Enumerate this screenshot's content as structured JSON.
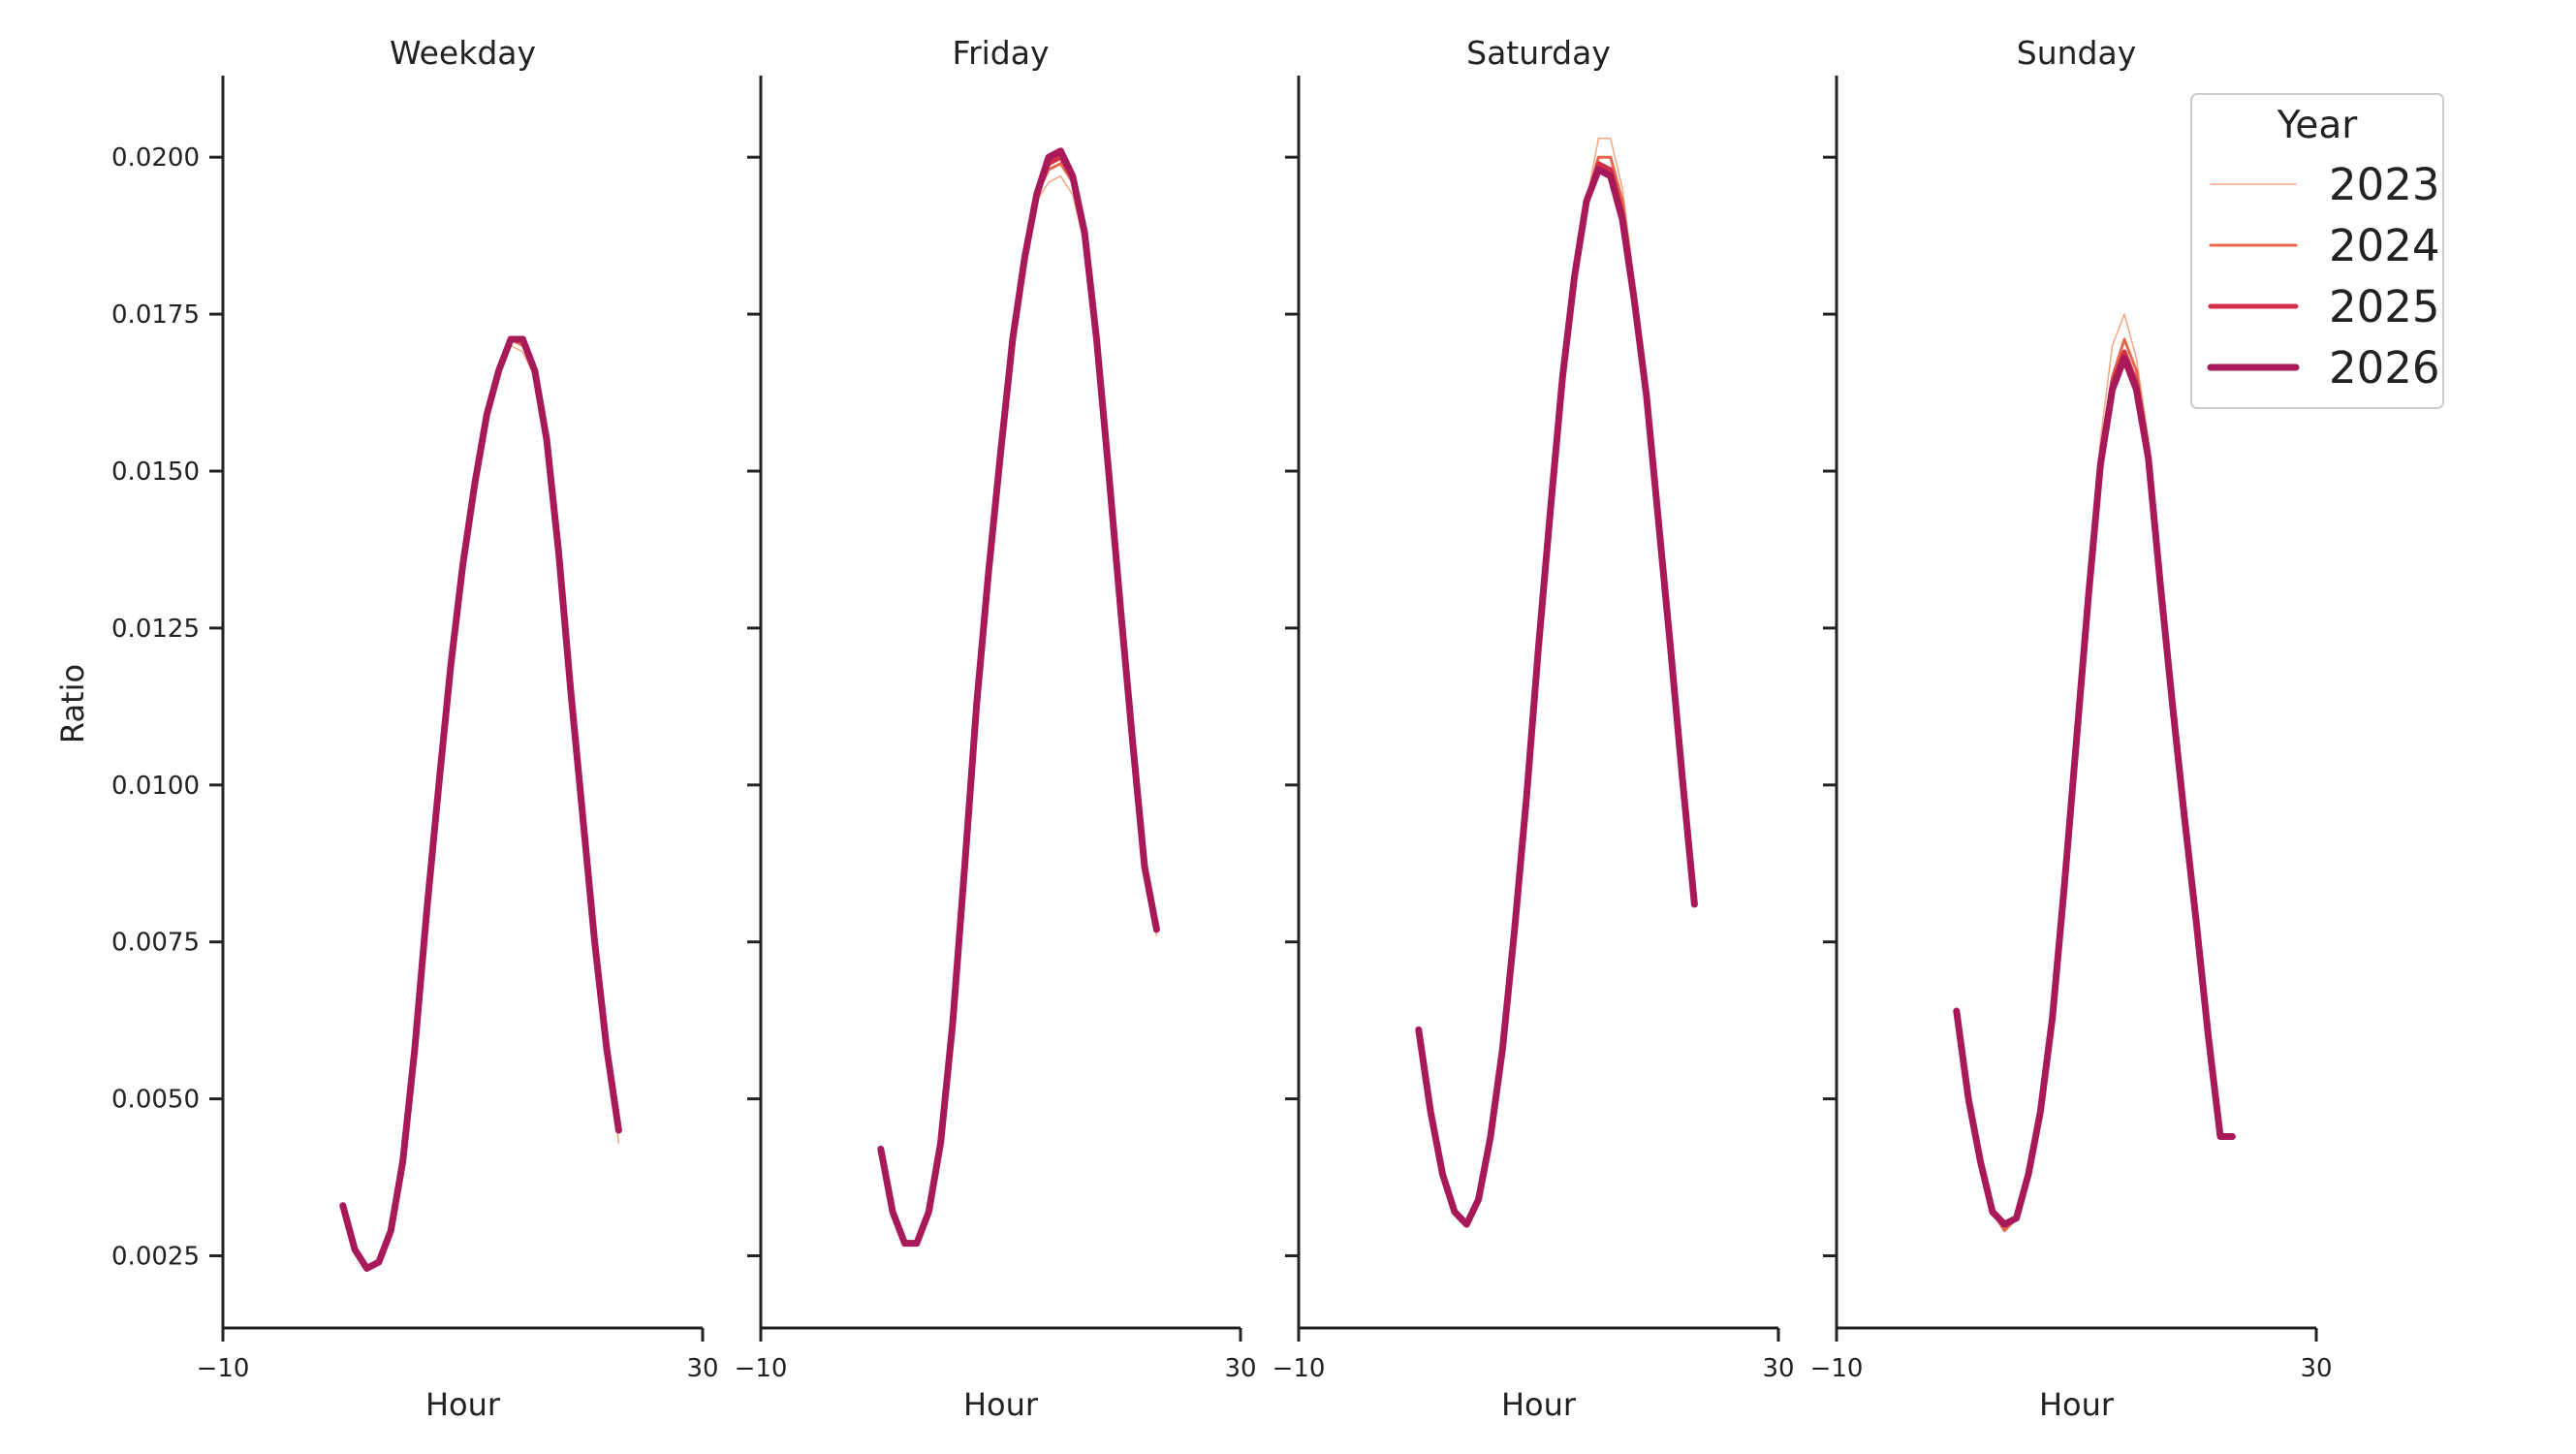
{
  "chart_data": {
    "type": "line",
    "ylabel": "Ratio",
    "xlabel": "Hour",
    "xlim": [
      -10,
      30
    ],
    "x_ticks": [
      -10,
      30
    ],
    "x_tick_labels": [
      "−10",
      "30"
    ],
    "ylim": [
      0.00135,
      0.0213
    ],
    "y_ticks": [
      0.0025,
      0.005,
      0.0075,
      0.01,
      0.0125,
      0.015,
      0.0175,
      0.02
    ],
    "y_tick_labels": [
      "0.0025",
      "0.0050",
      "0.0075",
      "0.0100",
      "0.0125",
      "0.0150",
      "0.0175",
      "0.0200"
    ],
    "grid": false,
    "legend": {
      "title": "Year",
      "position": "top-right",
      "entries": [
        {
          "name": "2023",
          "color": "#f4a582",
          "width": 1.5
        },
        {
          "name": "2024",
          "color": "#e8674a",
          "width": 3
        },
        {
          "name": "2025",
          "color": "#d0304a",
          "width": 5
        },
        {
          "name": "2026",
          "color": "#a8195a",
          "width": 7
        }
      ]
    },
    "x": [
      0,
      1,
      2,
      3,
      4,
      5,
      6,
      7,
      8,
      9,
      10,
      11,
      12,
      13,
      14,
      15,
      16,
      17,
      18,
      19,
      20,
      21,
      22,
      23
    ],
    "panels": [
      {
        "title": "Weekday",
        "series": [
          {
            "name": "2023",
            "values": [
              0.0033,
              0.0026,
              0.0023,
              0.0024,
              0.0029,
              0.004,
              0.0058,
              0.008,
              0.01,
              0.0119,
              0.0135,
              0.0148,
              0.0159,
              0.0166,
              0.017,
              0.0169,
              0.0165,
              0.0154,
              0.0136,
              0.0115,
              0.0095,
              0.0075,
              0.0058,
              0.0043
            ]
          },
          {
            "name": "2024",
            "values": [
              0.0033,
              0.0026,
              0.0023,
              0.0024,
              0.0029,
              0.004,
              0.0058,
              0.008,
              0.01,
              0.0119,
              0.0135,
              0.0148,
              0.0159,
              0.0166,
              0.0171,
              0.017,
              0.0166,
              0.0155,
              0.0137,
              0.0115,
              0.0095,
              0.0075,
              0.0058,
              0.0045
            ]
          },
          {
            "name": "2025",
            "values": [
              0.0033,
              0.0026,
              0.0023,
              0.0024,
              0.0029,
              0.004,
              0.0058,
              0.008,
              0.01,
              0.0119,
              0.0135,
              0.0148,
              0.0159,
              0.0166,
              0.0171,
              0.0171,
              0.0166,
              0.0155,
              0.0137,
              0.0115,
              0.0095,
              0.0075,
              0.0058,
              0.0045
            ]
          },
          {
            "name": "2026",
            "values": [
              0.0033,
              0.0026,
              0.0023,
              0.0024,
              0.0029,
              0.004,
              0.0058,
              0.008,
              0.01,
              0.0119,
              0.0135,
              0.0148,
              0.0159,
              0.0166,
              0.0171,
              0.0171,
              0.0166,
              0.0155,
              0.0137,
              0.0115,
              0.0095,
              0.0075,
              0.0058,
              0.0045
            ]
          }
        ]
      },
      {
        "title": "Friday",
        "series": [
          {
            "name": "2023",
            "values": [
              0.0042,
              0.0032,
              0.0027,
              0.0027,
              0.0032,
              0.0043,
              0.0062,
              0.0087,
              0.0113,
              0.0134,
              0.0153,
              0.017,
              0.0184,
              0.0193,
              0.0196,
              0.0197,
              0.0194,
              0.0186,
              0.017,
              0.0149,
              0.0127,
              0.0106,
              0.0086,
              0.0076
            ]
          },
          {
            "name": "2024",
            "values": [
              0.0042,
              0.0032,
              0.0027,
              0.0027,
              0.0032,
              0.0043,
              0.0062,
              0.0087,
              0.0113,
              0.0134,
              0.0153,
              0.0171,
              0.0184,
              0.0194,
              0.0198,
              0.0199,
              0.0196,
              0.0187,
              0.0171,
              0.015,
              0.0128,
              0.0107,
              0.0087,
              0.0077
            ]
          },
          {
            "name": "2025",
            "values": [
              0.0042,
              0.0032,
              0.0027,
              0.0027,
              0.0032,
              0.0043,
              0.0062,
              0.0087,
              0.0113,
              0.0134,
              0.0153,
              0.0171,
              0.0184,
              0.0194,
              0.0199,
              0.02,
              0.0197,
              0.0188,
              0.0171,
              0.015,
              0.0128,
              0.0107,
              0.0087,
              0.0077
            ]
          },
          {
            "name": "2026",
            "values": [
              0.0042,
              0.0032,
              0.0027,
              0.0027,
              0.0032,
              0.0043,
              0.0062,
              0.0087,
              0.0113,
              0.0134,
              0.0153,
              0.0171,
              0.0184,
              0.0194,
              0.02,
              0.0201,
              0.0197,
              0.0188,
              0.0171,
              0.015,
              0.0128,
              0.0107,
              0.0087,
              0.0077
            ]
          }
        ]
      },
      {
        "title": "Saturday",
        "series": [
          {
            "name": "2023",
            "values": [
              0.0061,
              0.0048,
              0.0038,
              0.0032,
              0.003,
              0.0034,
              0.0044,
              0.0058,
              0.0077,
              0.0098,
              0.0122,
              0.0144,
              0.0165,
              0.0181,
              0.0193,
              0.0203,
              0.0203,
              0.0195,
              0.018,
              0.0163,
              0.0143,
              0.0122,
              0.0101,
              0.0081
            ]
          },
          {
            "name": "2024",
            "values": [
              0.0061,
              0.0048,
              0.0038,
              0.0032,
              0.003,
              0.0034,
              0.0044,
              0.0058,
              0.0077,
              0.0098,
              0.0122,
              0.0144,
              0.0165,
              0.0181,
              0.0193,
              0.02,
              0.02,
              0.0193,
              0.0179,
              0.0162,
              0.0142,
              0.0122,
              0.0101,
              0.0081
            ]
          },
          {
            "name": "2025",
            "values": [
              0.0061,
              0.0048,
              0.0038,
              0.0032,
              0.003,
              0.0034,
              0.0044,
              0.0058,
              0.0077,
              0.0098,
              0.0122,
              0.0144,
              0.0165,
              0.0181,
              0.0193,
              0.0199,
              0.0198,
              0.0191,
              0.0178,
              0.0162,
              0.0142,
              0.0122,
              0.0101,
              0.0081
            ]
          },
          {
            "name": "2026",
            "values": [
              0.0061,
              0.0048,
              0.0038,
              0.0032,
              0.003,
              0.0034,
              0.0044,
              0.0058,
              0.0077,
              0.0098,
              0.0122,
              0.0144,
              0.0165,
              0.0181,
              0.0193,
              0.0198,
              0.0197,
              0.019,
              0.0177,
              0.0162,
              0.0142,
              0.0122,
              0.0101,
              0.0081
            ]
          }
        ]
      },
      {
        "title": "Sunday",
        "series": [
          {
            "name": "2023",
            "values": [
              0.0064,
              0.005,
              0.004,
              0.0032,
              0.0029,
              0.0031,
              0.0038,
              0.0048,
              0.0063,
              0.0084,
              0.0107,
              0.0132,
              0.0155,
              0.017,
              0.0175,
              0.0168,
              0.0155,
              0.0133,
              0.0114,
              0.0096,
              0.0078,
              0.006,
              0.0044,
              0.0044
            ]
          },
          {
            "name": "2024",
            "values": [
              0.0064,
              0.005,
              0.004,
              0.0032,
              0.0029,
              0.0031,
              0.0038,
              0.0048,
              0.0063,
              0.0084,
              0.0107,
              0.0131,
              0.0152,
              0.0165,
              0.0171,
              0.0166,
              0.0154,
              0.0133,
              0.0114,
              0.0096,
              0.0078,
              0.006,
              0.0044,
              0.0044
            ]
          },
          {
            "name": "2025",
            "values": [
              0.0064,
              0.005,
              0.004,
              0.0032,
              0.003,
              0.0031,
              0.0038,
              0.0048,
              0.0063,
              0.0084,
              0.0107,
              0.0131,
              0.0152,
              0.0164,
              0.0169,
              0.0164,
              0.0153,
              0.0132,
              0.0114,
              0.0096,
              0.0078,
              0.006,
              0.0044,
              0.0044
            ]
          },
          {
            "name": "2026",
            "values": [
              0.0064,
              0.005,
              0.004,
              0.0032,
              0.003,
              0.0031,
              0.0038,
              0.0048,
              0.0063,
              0.0084,
              0.0107,
              0.013,
              0.0151,
              0.0163,
              0.0168,
              0.0163,
              0.0152,
              0.0132,
              0.0113,
              0.0095,
              0.0078,
              0.006,
              0.0044,
              0.0044
            ]
          }
        ]
      }
    ]
  }
}
